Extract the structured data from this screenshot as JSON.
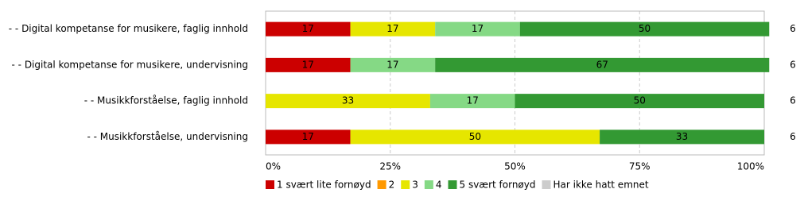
{
  "chart_data": {
    "type": "stacked-bar-horizontal",
    "categories": [
      "- - Digital kompetanse for musikere, faglig innhold",
      "- - Digital kompetanse for musikere, undervisning",
      "- - Musikkforståelse, faglig innhold",
      "- - Musikkforståelse, undervisning"
    ],
    "series": [
      {
        "name": "1 svært lite fornøyd",
        "color": "#cc0000",
        "values": [
          17,
          17,
          null,
          17
        ]
      },
      {
        "name": "2",
        "color": "#ff9900",
        "values": [
          null,
          null,
          null,
          null
        ]
      },
      {
        "name": "3",
        "color": "#e6e600",
        "values": [
          17,
          null,
          33,
          50
        ]
      },
      {
        "name": "4",
        "color": "#85d985",
        "values": [
          17,
          17,
          17,
          null
        ]
      },
      {
        "name": "5 svært fornøyd",
        "color": "#339933",
        "values": [
          50,
          67,
          50,
          33
        ]
      },
      {
        "name": "Har ikke hatt emnet",
        "color": "#cccccc",
        "values": [
          null,
          null,
          null,
          null
        ]
      }
    ],
    "counts": [
      6,
      6,
      6,
      6
    ],
    "xlim": [
      0,
      100
    ],
    "xticks": [
      {
        "value": 0,
        "label": "0%"
      },
      {
        "value": 25,
        "label": "25%"
      },
      {
        "value": 50,
        "label": "50%"
      },
      {
        "value": 75,
        "label": "75%"
      },
      {
        "value": 100,
        "label": "100%"
      }
    ],
    "grid": true,
    "legend": "bottom"
  }
}
